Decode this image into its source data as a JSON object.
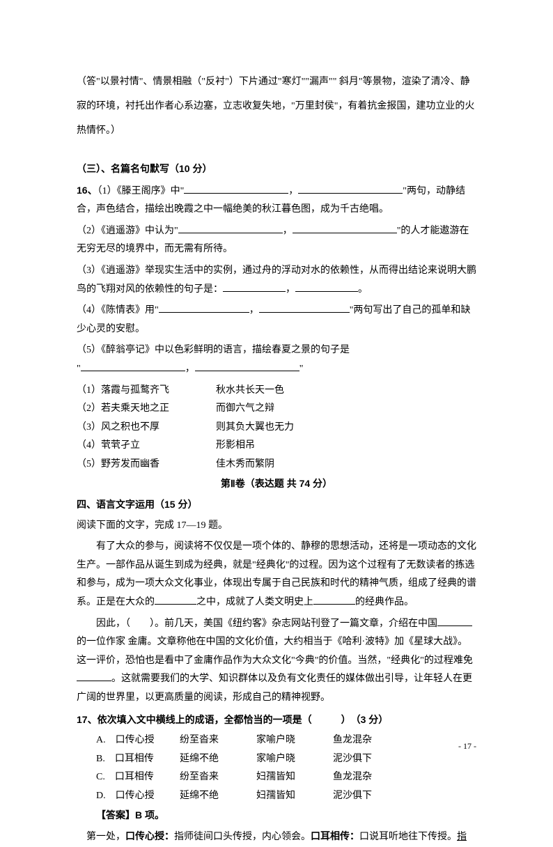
{
  "top_para": "（答\"以景衬情\"、情景相融（\"反衬\"）下片通过\"寒灯\"\"漏声\"\" 斜月\"等景物，渲染了清冷、静寂的环境，衬托出作者心系边塞，立志收复失地，\"万里封侯\"，有着抗金报国，建功立业的火热情怀。）",
  "s3_title": "（三）、名篇名句默写（10 分）",
  "q16_label": "16、",
  "q16_1a": "（1）《滕王阁序》中\"",
  "q16_1b": "\"两句，动静结合，声色结合，描绘出晚霞之中一幅绝美的秋江暮色图，成为千古绝唱。",
  "q16_2a": "（2）《逍遥游》中认为\"",
  "q16_2b": "\"的人才能遨游在无穷无尽的境界中，而无需有所待。",
  "q16_3a": "（3）《逍遥游》举现实生活中的实例，通过舟的浮动对水的依赖性，从而得出结论来说明大鹏鸟的飞翔对风的依赖性的句子是：",
  "q16_4a": "（4）《陈情表》用\"",
  "q16_4b": "\"两句写出了自己的孤单和缺少心灵的安慰。",
  "q16_5a": "（5）《醉翁亭记》中以色彩鲜明的语言，描绘春夏之景的句子是",
  "q16_5b": "\"",
  "ans1_l": "（1）落霞与孤鹜齐飞",
  "ans1_r": "秋水共长天一色",
  "ans2_l": "（2）若夫乘天地之正",
  "ans2_r": "而御六气之辩",
  "ans3_l": "（3）风之积也不厚",
  "ans3_r": "则其负大翼也无力",
  "ans4_l": "（4）茕茕孑立",
  "ans4_r": "形影相吊",
  "ans5_l": "（5）野芳发而幽香",
  "ans5_r": "佳木秀而繁阴",
  "part2_title": "第Ⅱ卷（表达题 共 74 分）",
  "s4_title": "四、语言文字运用（15 分）",
  "s4_sub": "阅读下面的文字，完成 17—19 题。",
  "p1a": "有了大众的参与，阅读将不仅仅是一项个体的、静穆的思想活动，还将是一项动态的文化生产。一部作品从诞生到成为经典，就是\"经典化\"的过程。因为这个过程有了无数读者的拣选和参与，成为一项大众文化事业，体现出专属于自己民族和时代的精神气质，组成了经典的谱系。正是在大众的",
  "p1b": "之中，成就了人类文明史上",
  "p1c": "的经典作品。",
  "p2a": "因此，（　　）。前几天，美国《纽约客》杂志网站刊登了一篇文章，介绍在中国",
  "p2b": "的一位作家 金庸。文章称他在中国的文化价值，大约相当于《哈利·波特》加《星球大战》。这一评价，恐怕也是看中了金庸作品作为大众文化\"今典\"的价值。当然，\"经典化\"的过程难免",
  "p2c": "。这就需要我们的大学、知识群体以及负有文化责任的媒体做出引导，让年轻人在更广阔的世界里，以更高质量的阅读，形成自己的精神视野。",
  "q17": "17、依次填入文中横线上的成语，全都恰当的一项是（　　　）　（3 分）",
  "optA": {
    "c1": "A. 口传心授",
    "c2": "纷至沓来",
    "c3": "家喻户晓",
    "c4": "鱼龙混杂"
  },
  "optB": {
    "c1": "B. 口耳相传",
    "c2": "延绵不绝",
    "c3": "家喻户晓",
    "c4": "泥沙俱下"
  },
  "optC": {
    "c1": "C. 口耳相传",
    "c2": "纷至沓来",
    "c3": "妇孺皆知",
    "c4": "鱼龙混杂"
  },
  "optD": {
    "c1": "D. 口传心授",
    "c2": "延绵不绝",
    "c3": "妇孺皆知",
    "c4": "泥沙俱下"
  },
  "ans17": "【答案】B 项。",
  "expl_a": "第一处，",
  "expl_b1": "口传心授：",
  "expl_c": "指师徒间口头传授，内心领会。",
  "expl_b2": "口耳相传：",
  "expl_d": "口说耳听地往下传授。",
  "expl_u": "指",
  "page": "- 17 -"
}
